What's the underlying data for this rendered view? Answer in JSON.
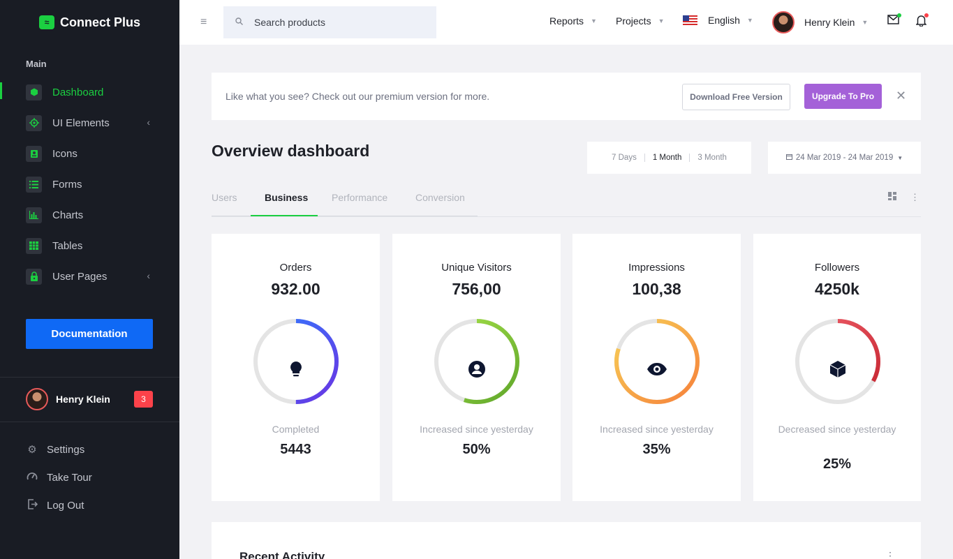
{
  "brand": {
    "name": "Connect Plus"
  },
  "sidebar": {
    "section": "Main",
    "items": [
      {
        "label": "Dashboard",
        "icon": "cube-icon",
        "active": true
      },
      {
        "label": "UI Elements",
        "icon": "crosshair-icon",
        "has_children": true
      },
      {
        "label": "Icons",
        "icon": "contact-icon"
      },
      {
        "label": "Forms",
        "icon": "list-icon"
      },
      {
        "label": "Charts",
        "icon": "bar-chart-icon"
      },
      {
        "label": "Tables",
        "icon": "table-icon"
      },
      {
        "label": "User Pages",
        "icon": "lock-icon",
        "has_children": true
      }
    ],
    "documentation_label": "Documentation",
    "user": {
      "name": "Henry Klein",
      "badge": "3"
    },
    "bottom": [
      {
        "label": "Settings",
        "icon": "gear-icon"
      },
      {
        "label": "Take Tour",
        "icon": "speedometer-icon"
      },
      {
        "label": "Log Out",
        "icon": "logout-icon"
      }
    ]
  },
  "topbar": {
    "search_placeholder": "Search products",
    "menus": {
      "reports": "Reports",
      "projects": "Projects",
      "language": "English"
    },
    "user_name": "Henry Klein"
  },
  "banner": {
    "text": "Like what you see? Check out our premium version for more.",
    "download_label": "Download Free Version",
    "upgrade_label": "Upgrade To Pro",
    "close_glyph": "✕"
  },
  "page": {
    "title": "Overview dashboard",
    "ranges": [
      "7 Days",
      "1 Month",
      "3 Month"
    ],
    "selected_range": "1 Month",
    "date_range": "24 Mar 2019 - 24 Mar 2019"
  },
  "tabs": [
    "Users",
    "Business",
    "Performance",
    "Conversion"
  ],
  "active_tab": "Business",
  "cards": [
    {
      "title": "Orders",
      "value": "932.00",
      "subtitle": "Completed",
      "stat": "5443",
      "icon": "lightbulb-icon",
      "ring_fraction": 0.5,
      "colors": [
        "#6a34e3",
        "#2f7dff"
      ]
    },
    {
      "title": "Unique Visitors",
      "value": "756,00",
      "subtitle": "Increased since yesterday",
      "stat": "50%",
      "icon": "user-circle-icon",
      "ring_fraction": 0.55,
      "colors": [
        "#5fa62a",
        "#a9e34b"
      ]
    },
    {
      "title": "Impressions",
      "value": "100,38",
      "subtitle": "Increased since yesterday",
      "stat": "35%",
      "icon": "eye-icon",
      "ring_fraction": 0.8,
      "colors": [
        "#f6803a",
        "#f7d158"
      ]
    },
    {
      "title": "Followers",
      "value": "4250k",
      "subtitle": "Decreased since yesterday",
      "stat": "25%",
      "icon": "cube-icon",
      "ring_fraction": 0.33,
      "colors": [
        "#c4232f",
        "#f0616b"
      ]
    }
  ],
  "activity": {
    "title": "Recent Activity",
    "more_glyph": "⋮"
  }
}
